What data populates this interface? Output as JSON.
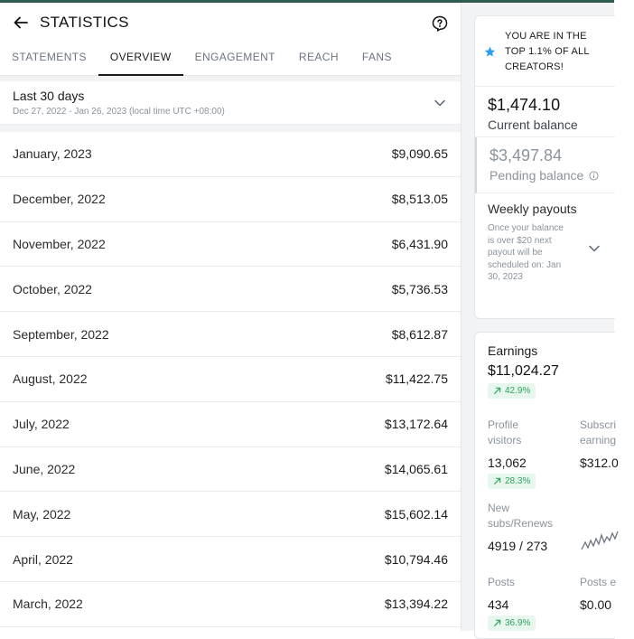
{
  "header": {
    "title": "STATISTICS"
  },
  "tabs": [
    {
      "label": "STATEMENTS"
    },
    {
      "label": "OVERVIEW"
    },
    {
      "label": "ENGAGEMENT"
    },
    {
      "label": "REACH"
    },
    {
      "label": "FANS"
    }
  ],
  "active_tab": "OVERVIEW",
  "period": {
    "title": "Last 30 days",
    "range": "Dec 27, 2022 - Jan 26, 2023 (local time UTC +08:00)"
  },
  "months": [
    {
      "month": "January, 2023",
      "amount": "$9,090.65"
    },
    {
      "month": "December, 2022",
      "amount": "$8,513.05"
    },
    {
      "month": "November, 2022",
      "amount": "$6,431.90"
    },
    {
      "month": "October, 2022",
      "amount": "$5,736.53"
    },
    {
      "month": "September, 2022",
      "amount": "$8,612.87"
    },
    {
      "month": "August, 2022",
      "amount": "$11,422.75"
    },
    {
      "month": "July, 2022",
      "amount": "$13,172.64"
    },
    {
      "month": "June, 2022",
      "amount": "$14,065.61"
    },
    {
      "month": "May, 2022",
      "amount": "$15,602.14"
    },
    {
      "month": "April, 2022",
      "amount": "$10,794.46"
    },
    {
      "month": "March, 2022",
      "amount": "$13,394.22"
    }
  ],
  "sidebar": {
    "top_creator": "YOU ARE IN THE TOP 1.1% OF ALL CREATORS!",
    "current_balance": {
      "amount": "$1,474.10",
      "label": "Current balance"
    },
    "pending_balance": {
      "amount": "$3,497.84",
      "label": "Pending balance"
    },
    "weekly": {
      "title": "Weekly payouts",
      "desc": "Once your balance is over $20 next payout will be scheduled on: Jan 30, 2023"
    },
    "earnings": {
      "label": "Earnings",
      "amount": "$11,024.27",
      "change": "42.9%"
    },
    "stats": {
      "profile_visitors": {
        "label": "Profile visitors",
        "value": "13,062",
        "change": "28.3%"
      },
      "subscription_earnings": {
        "label": "Subscri earning",
        "value": "$312.0"
      },
      "new_subs": {
        "label": "New subs/Renews",
        "value": "4919 / 273"
      },
      "posts": {
        "label": "Posts",
        "value": "434",
        "change": "36.9%"
      },
      "posts_earnings": {
        "label": "Posts e",
        "value": "$0.00"
      }
    }
  },
  "colors": {
    "accent_green": "#2ea35f",
    "star_blue": "#2a9df4",
    "top_line": "#2e5a4f"
  }
}
